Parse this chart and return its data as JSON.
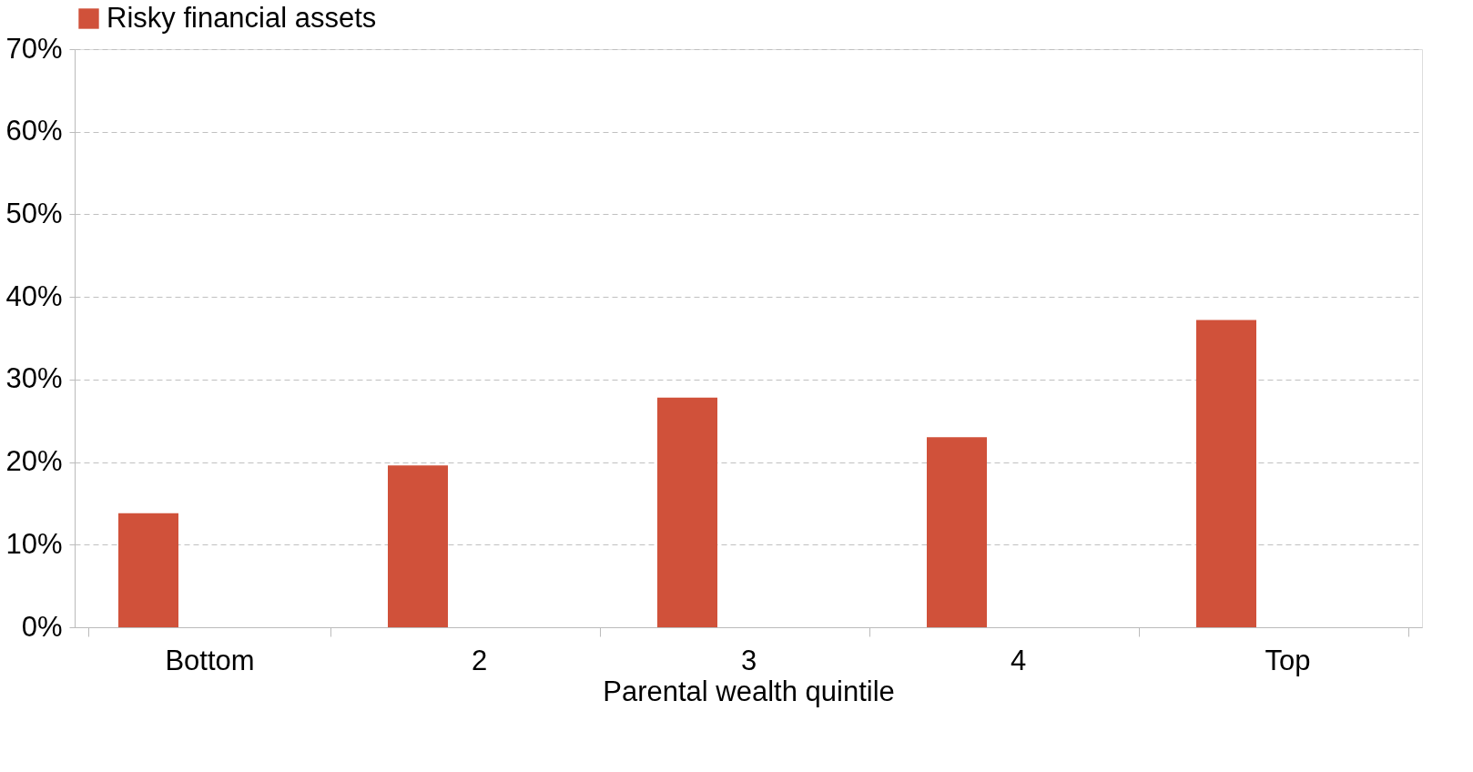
{
  "chart_data": {
    "type": "bar",
    "xlabel": "Parental wealth quintile",
    "categories": [
      "Bottom",
      "2",
      "3",
      "4",
      "Top"
    ],
    "series": [
      {
        "name": "Risky financial assets",
        "color": "#d0513a",
        "values": [
          13.8,
          19.6,
          27.8,
          23.0,
          37.2
        ]
      }
    ],
    "ylim": [
      0,
      70
    ],
    "yticks": [
      {
        "value": 0,
        "label": "0%"
      },
      {
        "value": 10,
        "label": "10%"
      },
      {
        "value": 20,
        "label": "20%"
      },
      {
        "value": 30,
        "label": "30%"
      },
      {
        "value": 40,
        "label": "40%"
      },
      {
        "value": 50,
        "label": "50%"
      },
      {
        "value": 60,
        "label": "60%"
      },
      {
        "value": 70,
        "label": "70%"
      }
    ],
    "grid": "y",
    "legend": "top"
  }
}
